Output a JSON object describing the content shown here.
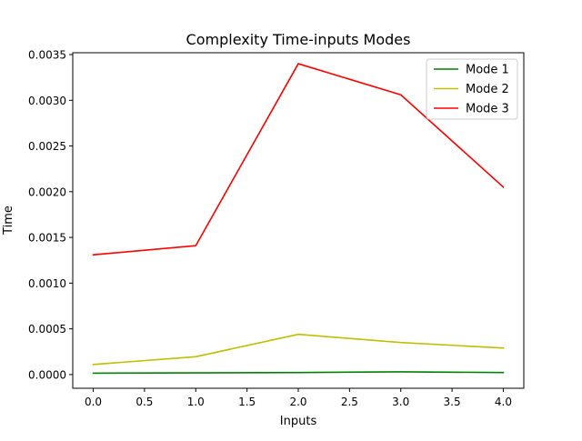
{
  "chart_data": {
    "type": "line",
    "title": "Complexity Time-inputs Modes",
    "xlabel": "Inputs",
    "ylabel": "Time",
    "x": [
      0,
      1,
      2,
      3,
      4
    ],
    "xlim": [
      -0.2,
      4.2
    ],
    "ylim": [
      -0.00015,
      0.00352
    ],
    "xticks": [
      0.0,
      0.5,
      1.0,
      1.5,
      2.0,
      2.5,
      3.0,
      3.5,
      4.0
    ],
    "xtick_labels": [
      "0.0",
      "0.5",
      "1.0",
      "1.5",
      "2.0",
      "2.5",
      "3.0",
      "3.5",
      "4.0"
    ],
    "yticks": [
      0.0,
      0.0005,
      0.001,
      0.0015,
      0.002,
      0.0025,
      0.003,
      0.0035
    ],
    "ytick_labels": [
      "0.0000",
      "0.0005",
      "0.0010",
      "0.0015",
      "0.0020",
      "0.0025",
      "0.0030",
      "0.0035"
    ],
    "grid": false,
    "legend_position": "top-right",
    "series": [
      {
        "name": "Mode 1",
        "color": "#008000",
        "values": [
          1.5e-05,
          1.8e-05,
          2.2e-05,
          3e-05,
          2.2e-05
        ]
      },
      {
        "name": "Mode 2",
        "color": "#bfbf00",
        "values": [
          0.00011,
          0.000195,
          0.00044,
          0.00035,
          0.00029
        ]
      },
      {
        "name": "Mode 3",
        "color": "#ff0000",
        "values": [
          0.00131,
          0.00141,
          0.0034,
          0.00306,
          0.00205
        ]
      }
    ]
  }
}
